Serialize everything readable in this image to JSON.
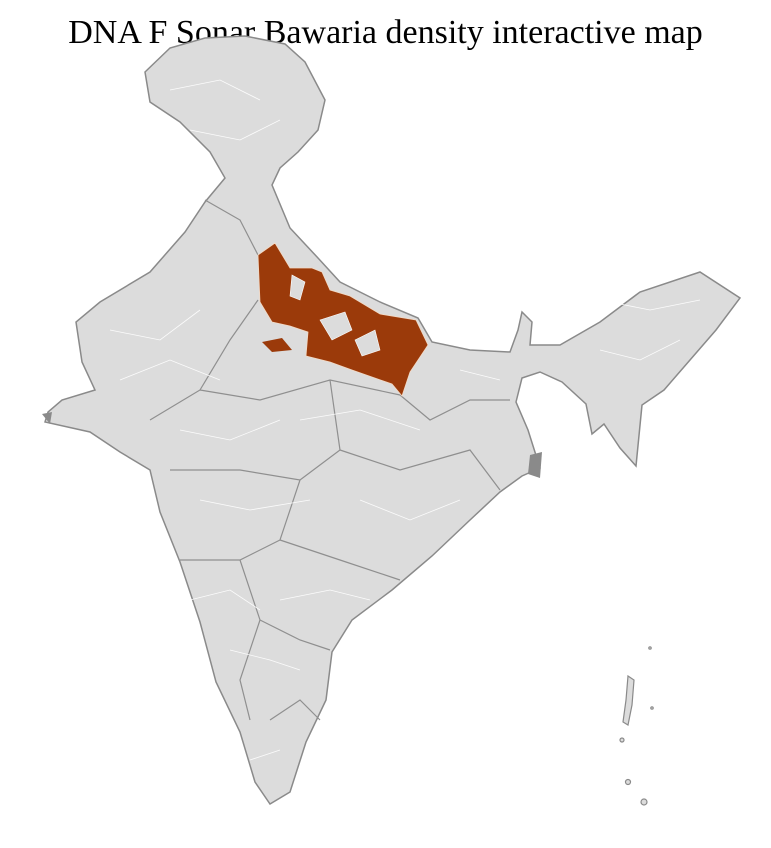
{
  "title": "DNA F Sonar Bawaria density interactive map",
  "map": {
    "colors": {
      "base_fill": "#dcdcdc",
      "highlight_fill": "#9b3a0a",
      "outer_border": "#8a8a8a",
      "district_border": "#ffffff"
    },
    "highlighted_area": "northern plains (Uttar Pradesh districts)"
  }
}
